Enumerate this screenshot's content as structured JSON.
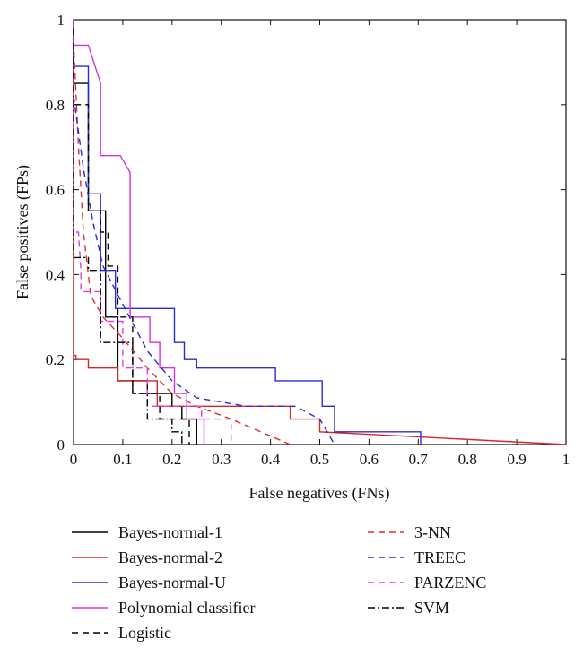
{
  "chart_data": {
    "type": "line",
    "title": "",
    "xlabel": "False negatives (FNs)",
    "ylabel": "False positives (FPs)",
    "xlim": [
      0,
      1
    ],
    "ylim": [
      0,
      1
    ],
    "xticks": [
      "0",
      "0.1",
      "0.2",
      "0.3",
      "0.4",
      "0.5",
      "0.6",
      "0.7",
      "0.8",
      "0.9",
      "1"
    ],
    "yticks": [
      "0",
      "0.2",
      "0.4",
      "0.6",
      "0.8",
      "1"
    ],
    "legend_position": "below",
    "series": [
      {
        "name": "Bayes-normal-1",
        "color": "#000000",
        "style": "solid",
        "x": [
          0,
          0,
          0.03,
          0.03,
          0.065,
          0.065,
          0.09,
          0.09,
          0.15,
          0.15,
          0.2,
          0.2,
          0.22,
          0.22,
          0.25,
          0.25
        ],
        "y": [
          1,
          0.85,
          0.85,
          0.55,
          0.55,
          0.3,
          0.3,
          0.15,
          0.15,
          0.12,
          0.12,
          0.09,
          0.09,
          0.06,
          0.06,
          0
        ]
      },
      {
        "name": "Bayes-normal-2",
        "color": "#d62728",
        "style": "solid",
        "x": [
          0,
          0,
          0.005,
          0.005,
          0.03,
          0.03,
          0.09,
          0.09,
          0.17,
          0.17,
          0.44,
          0.44,
          0.5,
          0.5,
          1
        ],
        "y": [
          1,
          0.21,
          0.21,
          0.2,
          0.2,
          0.18,
          0.18,
          0.15,
          0.15,
          0.09,
          0.09,
          0.06,
          0.06,
          0.03,
          0
        ]
      },
      {
        "name": "Bayes-normal-U",
        "color": "#2b2bd6",
        "style": "solid",
        "x": [
          0,
          0,
          0.03,
          0.03,
          0.055,
          0.055,
          0.085,
          0.085,
          0.12,
          0.12,
          0.205,
          0.205,
          0.225,
          0.225,
          0.25,
          0.25,
          0.41,
          0.41,
          0.505,
          0.505,
          0.53,
          0.53,
          0.705,
          0.705
        ],
        "y": [
          0.99,
          0.89,
          0.89,
          0.59,
          0.59,
          0.41,
          0.41,
          0.32,
          0.32,
          0.32,
          0.32,
          0.24,
          0.24,
          0.2,
          0.2,
          0.18,
          0.18,
          0.15,
          0.15,
          0.09,
          0.09,
          0.03,
          0.03,
          0
        ]
      },
      {
        "name": "Polynomial classifier",
        "color": "#d633d6",
        "style": "solid",
        "x": [
          0,
          0,
          0.03,
          0.055,
          0.055,
          0.095,
          0.115,
          0.115,
          0.155,
          0.155,
          0.175,
          0.175,
          0.205,
          0.205,
          0.23,
          0.23,
          0.265,
          0.265
        ],
        "y": [
          1,
          0.94,
          0.94,
          0.85,
          0.68,
          0.68,
          0.64,
          0.3,
          0.3,
          0.24,
          0.24,
          0.18,
          0.18,
          0.12,
          0.12,
          0.06,
          0.06,
          0
        ]
      },
      {
        "name": "Logistic",
        "color": "#000000",
        "style": "dash",
        "x": [
          0,
          0,
          0.03,
          0.03,
          0.055,
          0.055,
          0.07,
          0.07,
          0.09,
          0.09,
          0.12,
          0.12,
          0.175,
          0.175,
          0.235,
          0.235
        ],
        "y": [
          1,
          0.8,
          0.8,
          0.55,
          0.55,
          0.5,
          0.5,
          0.42,
          0.42,
          0.3,
          0.3,
          0.12,
          0.12,
          0.06,
          0.06,
          0
        ]
      },
      {
        "name": "3-NN",
        "color": "#e03030",
        "style": "dash",
        "x": [
          0,
          0.01,
          0.02,
          0.035,
          0.06,
          0.1,
          0.15,
          0.2,
          0.25,
          0.32,
          0.38,
          0.44
        ],
        "y": [
          0.95,
          0.7,
          0.5,
          0.35,
          0.3,
          0.25,
          0.18,
          0.12,
          0.09,
          0.06,
          0.03,
          0
        ]
      },
      {
        "name": "TREEC",
        "color": "#2b2bd6",
        "style": "dash",
        "x": [
          0,
          0.02,
          0.04,
          0.06,
          0.1,
          0.15,
          0.2,
          0.25,
          0.3,
          0.35,
          0.45,
          0.5,
          0.53
        ],
        "y": [
          0.82,
          0.65,
          0.52,
          0.42,
          0.33,
          0.22,
          0.15,
          0.11,
          0.1,
          0.09,
          0.09,
          0.06,
          0
        ]
      },
      {
        "name": "PARZENC",
        "color": "#e040e0",
        "style": "dash",
        "x": [
          0,
          0,
          0.01,
          0.015,
          0.015,
          0.055,
          0.055,
          0.1,
          0.1,
          0.15,
          0.15,
          0.26,
          0.26,
          0.32,
          0.32
        ],
        "y": [
          1,
          0.5,
          0.5,
          0.41,
          0.36,
          0.36,
          0.29,
          0.29,
          0.18,
          0.18,
          0.09,
          0.09,
          0.06,
          0.06,
          0
        ]
      },
      {
        "name": "SVM",
        "color": "#000000",
        "style": "dashdot",
        "x": [
          0,
          0,
          0.01,
          0.01,
          0.03,
          0.03,
          0.055,
          0.055,
          0.12,
          0.12,
          0.15,
          0.15,
          0.2,
          0.2,
          0.22,
          0.22
        ],
        "y": [
          0.98,
          0.44,
          0.44,
          0.44,
          0.44,
          0.41,
          0.41,
          0.24,
          0.24,
          0.12,
          0.12,
          0.06,
          0.06,
          0.03,
          0.03,
          0
        ]
      }
    ]
  }
}
